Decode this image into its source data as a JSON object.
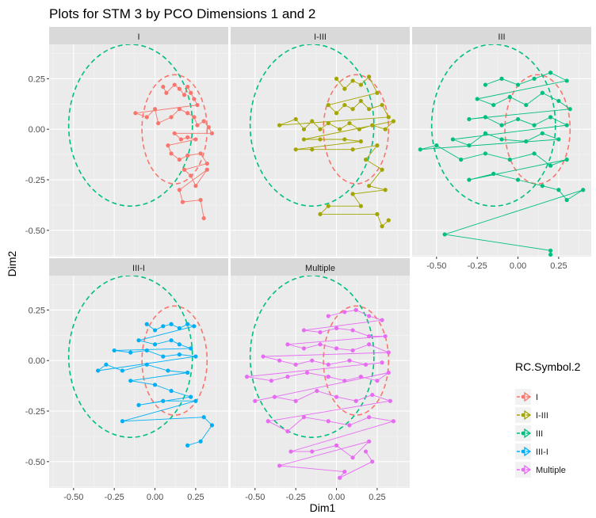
{
  "chart_data": {
    "type": "scatter",
    "title": "Plots for STM 3 by PCO Dimensions 1 and 2",
    "xlabel": "Dim1",
    "ylabel": "Dim2",
    "xlim": [
      -0.65,
      0.45
    ],
    "ylim": [
      -0.63,
      0.42
    ],
    "x_ticks": [
      -0.5,
      -0.25,
      0.0,
      0.25
    ],
    "x_tick_labels": [
      "-0.50",
      "-0.25",
      "0.00",
      "0.25"
    ],
    "y_ticks": [
      0.25,
      0.0,
      -0.25,
      -0.5
    ],
    "y_tick_labels": [
      "0.25",
      "0.00",
      "-0.25",
      "-0.50"
    ],
    "grid": true,
    "legend": {
      "title": "RC.Symbol.2",
      "placement": "right",
      "entries": [
        "I",
        "I-III",
        "III",
        "III-I",
        "Multiple"
      ]
    },
    "colors": {
      "I": "#F8766D",
      "I-III": "#A3A500",
      "III": "#00BF7D",
      "III-I": "#00B0F6",
      "Multiple": "#E76BF3"
    },
    "ellipses": [
      {
        "series": "I",
        "center": [
          0.12,
          0.0
        ],
        "rx": 0.2,
        "ry": 0.27
      },
      {
        "series": "III",
        "center": [
          -0.15,
          0.02
        ],
        "rx": 0.38,
        "ry": 0.4
      }
    ],
    "panels": [
      {
        "label": "I",
        "series": "I",
        "points": [
          [
            0.05,
            0.21
          ],
          [
            0.07,
            0.18
          ],
          [
            0.12,
            0.22
          ],
          [
            0.15,
            0.2
          ],
          [
            0.18,
            0.17
          ],
          [
            0.2,
            0.21
          ],
          [
            0.22,
            0.18
          ],
          [
            0.24,
            0.15
          ],
          [
            0.26,
            0.12
          ],
          [
            -0.12,
            0.08
          ],
          [
            -0.05,
            0.06
          ],
          [
            0.0,
            0.1
          ],
          [
            0.02,
            0.03
          ],
          [
            0.1,
            0.06
          ],
          [
            0.15,
            0.1
          ],
          [
            0.2,
            0.08
          ],
          [
            0.24,
            0.06
          ],
          [
            0.26,
            0.02
          ],
          [
            0.3,
            0.04
          ],
          [
            0.33,
            0.01
          ],
          [
            0.35,
            -0.02
          ],
          [
            0.12,
            -0.02
          ],
          [
            0.16,
            -0.05
          ],
          [
            0.2,
            -0.04
          ],
          [
            0.25,
            -0.05
          ],
          [
            0.08,
            -0.08
          ],
          [
            0.1,
            -0.12
          ],
          [
            0.15,
            -0.15
          ],
          [
            0.2,
            -0.13
          ],
          [
            0.28,
            -0.12
          ],
          [
            0.32,
            -0.17
          ],
          [
            0.18,
            -0.2
          ],
          [
            0.22,
            -0.23
          ],
          [
            0.25,
            -0.28
          ],
          [
            0.32,
            -0.2
          ],
          [
            0.15,
            -0.3
          ],
          [
            0.17,
            -0.36
          ],
          [
            0.28,
            -0.35
          ],
          [
            0.3,
            -0.44
          ]
        ]
      },
      {
        "label": "I-III",
        "series": "I-III",
        "points": [
          [
            0.0,
            0.25
          ],
          [
            0.05,
            0.2
          ],
          [
            0.1,
            0.24
          ],
          [
            0.15,
            0.22
          ],
          [
            0.2,
            0.26
          ],
          [
            0.25,
            0.18
          ],
          [
            -0.05,
            0.12
          ],
          [
            0.0,
            0.08
          ],
          [
            0.05,
            0.12
          ],
          [
            0.1,
            0.1
          ],
          [
            0.15,
            0.14
          ],
          [
            0.2,
            0.1
          ],
          [
            0.28,
            0.12
          ],
          [
            0.32,
            0.06
          ],
          [
            -0.35,
            0.02
          ],
          [
            -0.25,
            0.05
          ],
          [
            -0.2,
            0.0
          ],
          [
            -0.15,
            0.04
          ],
          [
            -0.1,
            0.0
          ],
          [
            -0.05,
            0.03
          ],
          [
            0.02,
            0.0
          ],
          [
            0.08,
            0.03
          ],
          [
            0.14,
            0.0
          ],
          [
            0.22,
            0.02
          ],
          [
            0.3,
            0.0
          ],
          [
            0.35,
            0.04
          ],
          [
            -0.2,
            -0.05
          ],
          [
            -0.1,
            -0.05
          ],
          [
            0.05,
            -0.05
          ],
          [
            0.15,
            -0.06
          ],
          [
            -0.25,
            -0.1
          ],
          [
            -0.15,
            -0.1
          ],
          [
            0.1,
            -0.1
          ],
          [
            0.25,
            -0.08
          ],
          [
            0.18,
            -0.15
          ],
          [
            0.28,
            -0.2
          ],
          [
            0.2,
            -0.28
          ],
          [
            0.3,
            -0.3
          ],
          [
            0.1,
            -0.32
          ],
          [
            0.15,
            -0.38
          ],
          [
            -0.05,
            -0.38
          ],
          [
            -0.1,
            -0.42
          ],
          [
            0.25,
            -0.42
          ],
          [
            0.28,
            -0.48
          ],
          [
            0.32,
            -0.45
          ]
        ]
      },
      {
        "label": "III",
        "series": "III",
        "points": [
          [
            -0.2,
            0.22
          ],
          [
            -0.1,
            0.25
          ],
          [
            0.0,
            0.22
          ],
          [
            0.1,
            0.25
          ],
          [
            0.2,
            0.28
          ],
          [
            0.3,
            0.24
          ],
          [
            -0.25,
            0.15
          ],
          [
            -0.15,
            0.12
          ],
          [
            -0.05,
            0.16
          ],
          [
            0.05,
            0.12
          ],
          [
            0.15,
            0.18
          ],
          [
            0.25,
            0.14
          ],
          [
            0.32,
            0.1
          ],
          [
            -0.3,
            0.05
          ],
          [
            -0.2,
            0.06
          ],
          [
            -0.1,
            0.02
          ],
          [
            0.0,
            0.05
          ],
          [
            0.1,
            0.02
          ],
          [
            0.2,
            0.06
          ],
          [
            0.3,
            0.02
          ],
          [
            -0.4,
            -0.05
          ],
          [
            -0.3,
            -0.08
          ],
          [
            -0.2,
            -0.02
          ],
          [
            -0.1,
            -0.05
          ],
          [
            0.05,
            -0.06
          ],
          [
            0.15,
            -0.02
          ],
          [
            0.25,
            -0.05
          ],
          [
            -0.6,
            -0.1
          ],
          [
            -0.5,
            -0.08
          ],
          [
            -0.35,
            -0.15
          ],
          [
            -0.2,
            -0.12
          ],
          [
            -0.05,
            -0.15
          ],
          [
            0.1,
            -0.12
          ],
          [
            0.2,
            -0.18
          ],
          [
            0.3,
            -0.15
          ],
          [
            -0.3,
            -0.25
          ],
          [
            -0.15,
            -0.22
          ],
          [
            0.0,
            -0.25
          ],
          [
            0.15,
            -0.28
          ],
          [
            0.25,
            -0.3
          ],
          [
            0.3,
            -0.35
          ],
          [
            0.4,
            -0.3
          ],
          [
            -0.45,
            -0.52
          ],
          [
            0.2,
            -0.6
          ],
          [
            0.2,
            -0.62
          ]
        ]
      },
      {
        "label": "III-I",
        "series": "III-I",
        "points": [
          [
            -0.05,
            0.18
          ],
          [
            0.0,
            0.15
          ],
          [
            0.05,
            0.17
          ],
          [
            0.1,
            0.18
          ],
          [
            0.15,
            0.16
          ],
          [
            0.2,
            0.18
          ],
          [
            0.24,
            0.17
          ],
          [
            -0.1,
            0.1
          ],
          [
            0.0,
            0.08
          ],
          [
            0.1,
            0.1
          ],
          [
            0.15,
            0.08
          ],
          [
            0.22,
            0.06
          ],
          [
            -0.25,
            0.05
          ],
          [
            -0.15,
            0.04
          ],
          [
            -0.05,
            0.05
          ],
          [
            0.05,
            0.02
          ],
          [
            0.15,
            0.03
          ],
          [
            0.25,
            0.02
          ],
          [
            -0.35,
            -0.05
          ],
          [
            -0.3,
            -0.02
          ],
          [
            -0.2,
            -0.05
          ],
          [
            -0.05,
            -0.02
          ],
          [
            0.08,
            -0.05
          ],
          [
            0.2,
            -0.06
          ],
          [
            -0.15,
            -0.1
          ],
          [
            0.0,
            -0.12
          ],
          [
            0.1,
            -0.15
          ],
          [
            0.22,
            -0.18
          ],
          [
            -0.1,
            -0.22
          ],
          [
            0.05,
            -0.2
          ],
          [
            0.25,
            -0.2
          ],
          [
            -0.2,
            -0.3
          ],
          [
            0.3,
            -0.28
          ],
          [
            0.35,
            -0.32
          ],
          [
            0.28,
            -0.4
          ],
          [
            0.2,
            -0.42
          ]
        ]
      },
      {
        "label": "Multiple",
        "series": "Multiple",
        "points": [
          [
            -0.05,
            0.22
          ],
          [
            0.05,
            0.24
          ],
          [
            0.12,
            0.25
          ],
          [
            0.2,
            0.22
          ],
          [
            0.28,
            0.2
          ],
          [
            -0.2,
            0.15
          ],
          [
            -0.1,
            0.14
          ],
          [
            0.0,
            0.16
          ],
          [
            0.1,
            0.15
          ],
          [
            0.2,
            0.12
          ],
          [
            0.3,
            0.12
          ],
          [
            -0.3,
            0.08
          ],
          [
            -0.2,
            0.06
          ],
          [
            -0.1,
            0.08
          ],
          [
            0.0,
            0.06
          ],
          [
            0.1,
            0.05
          ],
          [
            0.2,
            0.08
          ],
          [
            0.32,
            0.04
          ],
          [
            -0.45,
            0.02
          ],
          [
            -0.35,
            0.0
          ],
          [
            -0.25,
            -0.02
          ],
          [
            -0.15,
            0.0
          ],
          [
            -0.05,
            -0.02
          ],
          [
            0.08,
            0.0
          ],
          [
            0.18,
            -0.02
          ],
          [
            0.28,
            -0.01
          ],
          [
            -0.55,
            -0.08
          ],
          [
            -0.4,
            -0.1
          ],
          [
            -0.3,
            -0.08
          ],
          [
            -0.18,
            -0.06
          ],
          [
            -0.05,
            -0.08
          ],
          [
            0.05,
            -0.1
          ],
          [
            0.15,
            -0.08
          ],
          [
            0.25,
            -0.1
          ],
          [
            0.32,
            -0.06
          ],
          [
            -0.5,
            -0.2
          ],
          [
            -0.38,
            -0.18
          ],
          [
            -0.25,
            -0.2
          ],
          [
            -0.12,
            -0.15
          ],
          [
            0.0,
            -0.18
          ],
          [
            0.12,
            -0.2
          ],
          [
            0.22,
            -0.17
          ],
          [
            0.33,
            -0.2
          ],
          [
            -0.42,
            -0.3
          ],
          [
            -0.3,
            -0.35
          ],
          [
            -0.2,
            -0.28
          ],
          [
            -0.05,
            -0.3
          ],
          [
            0.08,
            -0.32
          ],
          [
            0.2,
            -0.28
          ],
          [
            0.35,
            -0.3
          ],
          [
            -0.28,
            -0.45
          ],
          [
            -0.15,
            -0.45
          ],
          [
            0.0,
            -0.42
          ],
          [
            0.1,
            -0.48
          ],
          [
            0.2,
            -0.4
          ],
          [
            -0.35,
            -0.52
          ],
          [
            0.05,
            -0.55
          ],
          [
            0.02,
            -0.58
          ],
          [
            0.22,
            -0.5
          ],
          [
            0.18,
            -0.45
          ]
        ]
      }
    ]
  }
}
